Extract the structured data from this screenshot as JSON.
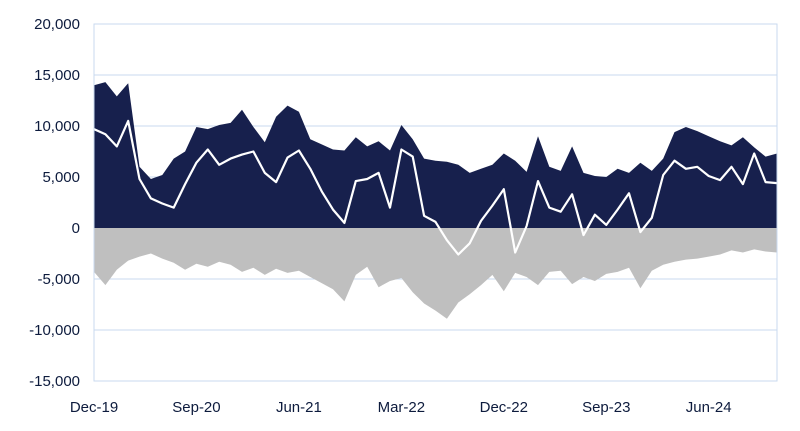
{
  "chart_data": {
    "type": "area",
    "title": "",
    "xlabel": "",
    "ylabel": "",
    "ylim": [
      -15000,
      20000
    ],
    "y_ticks": [
      -15000,
      -10000,
      -5000,
      0,
      5000,
      10000,
      15000,
      20000
    ],
    "y_tick_labels": [
      "-15,000",
      "-10,000",
      "-5,000",
      "0",
      "5,000",
      "10,000",
      "15,000",
      "20,000"
    ],
    "x_ticks": [
      "2019-12",
      "2020-09",
      "2021-06",
      "2022-03",
      "2022-12",
      "2023-09",
      "2024-06"
    ],
    "x_tick_labels": [
      "Dec-19",
      "Sep-20",
      "Jun-21",
      "Mar-22",
      "Dec-22",
      "Sep-23",
      "Jun-24"
    ],
    "x_range": [
      "2019-12",
      "2024-12"
    ],
    "grid": true,
    "legend": "none",
    "colors": {
      "long": "#17204d",
      "short": "#bfbfbf",
      "net": "#ffffff",
      "grid": "#c9daef",
      "text": "#0d1b3d"
    },
    "series": [
      {
        "role": "long",
        "style": "area",
        "points": [
          [
            "2019-12",
            14000
          ],
          [
            "2020-01",
            14300
          ],
          [
            "2020-02",
            12900
          ],
          [
            "2020-03",
            14200
          ],
          [
            "2020-04",
            6000
          ],
          [
            "2020-05",
            4800
          ],
          [
            "2020-06",
            5200
          ],
          [
            "2020-07",
            6800
          ],
          [
            "2020-08",
            7500
          ],
          [
            "2020-09",
            9900
          ],
          [
            "2020-10",
            9700
          ],
          [
            "2020-11",
            10100
          ],
          [
            "2020-12",
            10300
          ],
          [
            "2021-01",
            11600
          ],
          [
            "2021-02",
            9900
          ],
          [
            "2021-03",
            8400
          ],
          [
            "2021-04",
            10900
          ],
          [
            "2021-05",
            12000
          ],
          [
            "2021-06",
            11400
          ],
          [
            "2021-07",
            8700
          ],
          [
            "2021-08",
            8200
          ],
          [
            "2021-09",
            7700
          ],
          [
            "2021-10",
            7600
          ],
          [
            "2021-11",
            8900
          ],
          [
            "2021-12",
            8000
          ],
          [
            "2022-01",
            8500
          ],
          [
            "2022-02",
            7600
          ],
          [
            "2022-03",
            10100
          ],
          [
            "2022-04",
            8700
          ],
          [
            "2022-05",
            6800
          ],
          [
            "2022-06",
            6600
          ],
          [
            "2022-07",
            6500
          ],
          [
            "2022-08",
            6200
          ],
          [
            "2022-09",
            5400
          ],
          [
            "2022-10",
            5800
          ],
          [
            "2022-11",
            6200
          ],
          [
            "2022-12",
            7300
          ],
          [
            "2023-01",
            6600
          ],
          [
            "2023-02",
            5500
          ],
          [
            "2023-03",
            9000
          ],
          [
            "2023-04",
            6000
          ],
          [
            "2023-05",
            5600
          ],
          [
            "2023-06",
            8000
          ],
          [
            "2023-07",
            5400
          ],
          [
            "2023-08",
            5100
          ],
          [
            "2023-09",
            5000
          ],
          [
            "2023-10",
            5800
          ],
          [
            "2023-11",
            5400
          ],
          [
            "2023-12",
            6400
          ],
          [
            "2024-01",
            5600
          ],
          [
            "2024-02",
            6800
          ],
          [
            "2024-03",
            9400
          ],
          [
            "2024-04",
            9900
          ],
          [
            "2024-05",
            9500
          ],
          [
            "2024-06",
            9000
          ],
          [
            "2024-07",
            8500
          ],
          [
            "2024-08",
            8100
          ],
          [
            "2024-09",
            8900
          ],
          [
            "2024-10",
            7900
          ],
          [
            "2024-11",
            7000
          ],
          [
            "2024-12",
            7300
          ]
        ]
      },
      {
        "role": "short",
        "style": "area",
        "points": [
          [
            "2019-12",
            -4300
          ],
          [
            "2020-01",
            -5600
          ],
          [
            "2020-02",
            -4100
          ],
          [
            "2020-03",
            -3200
          ],
          [
            "2020-04",
            -2800
          ],
          [
            "2020-05",
            -2500
          ],
          [
            "2020-06",
            -3000
          ],
          [
            "2020-07",
            -3400
          ],
          [
            "2020-08",
            -4100
          ],
          [
            "2020-09",
            -3500
          ],
          [
            "2020-10",
            -3800
          ],
          [
            "2020-11",
            -3300
          ],
          [
            "2020-12",
            -3600
          ],
          [
            "2021-01",
            -4300
          ],
          [
            "2021-02",
            -3900
          ],
          [
            "2021-03",
            -4600
          ],
          [
            "2021-04",
            -4000
          ],
          [
            "2021-05",
            -4400
          ],
          [
            "2021-06",
            -4200
          ],
          [
            "2021-07",
            -4800
          ],
          [
            "2021-08",
            -5400
          ],
          [
            "2021-09",
            -6000
          ],
          [
            "2021-10",
            -7200
          ],
          [
            "2021-11",
            -4600
          ],
          [
            "2021-12",
            -3800
          ],
          [
            "2022-01",
            -5800
          ],
          [
            "2022-02",
            -5200
          ],
          [
            "2022-03",
            -4900
          ],
          [
            "2022-04",
            -6300
          ],
          [
            "2022-05",
            -7400
          ],
          [
            "2022-06",
            -8100
          ],
          [
            "2022-07",
            -8900
          ],
          [
            "2022-08",
            -7300
          ],
          [
            "2022-09",
            -6500
          ],
          [
            "2022-10",
            -5600
          ],
          [
            "2022-11",
            -4600
          ],
          [
            "2022-12",
            -6200
          ],
          [
            "2023-01",
            -4400
          ],
          [
            "2023-02",
            -4800
          ],
          [
            "2023-03",
            -5600
          ],
          [
            "2023-04",
            -4300
          ],
          [
            "2023-05",
            -4200
          ],
          [
            "2023-06",
            -5500
          ],
          [
            "2023-07",
            -4800
          ],
          [
            "2023-08",
            -5200
          ],
          [
            "2023-09",
            -4500
          ],
          [
            "2023-10",
            -4300
          ],
          [
            "2023-11",
            -3900
          ],
          [
            "2023-12",
            -5900
          ],
          [
            "2024-01",
            -4200
          ],
          [
            "2024-02",
            -3600
          ],
          [
            "2024-03",
            -3300
          ],
          [
            "2024-04",
            -3100
          ],
          [
            "2024-05",
            -3000
          ],
          [
            "2024-06",
            -2800
          ],
          [
            "2024-07",
            -2600
          ],
          [
            "2024-08",
            -2200
          ],
          [
            "2024-09",
            -2400
          ],
          [
            "2024-10",
            -2100
          ],
          [
            "2024-11",
            -2300
          ],
          [
            "2024-12",
            -2400
          ]
        ]
      },
      {
        "role": "net",
        "style": "line",
        "points": [
          [
            "2019-12",
            9700
          ],
          [
            "2020-01",
            9200
          ],
          [
            "2020-02",
            8000
          ],
          [
            "2020-03",
            10500
          ],
          [
            "2020-04",
            4800
          ],
          [
            "2020-05",
            2900
          ],
          [
            "2020-06",
            2400
          ],
          [
            "2020-07",
            2000
          ],
          [
            "2020-08",
            4300
          ],
          [
            "2020-09",
            6400
          ],
          [
            "2020-10",
            7700
          ],
          [
            "2020-11",
            6200
          ],
          [
            "2020-12",
            6800
          ],
          [
            "2021-01",
            7200
          ],
          [
            "2021-02",
            7500
          ],
          [
            "2021-03",
            5400
          ],
          [
            "2021-04",
            4500
          ],
          [
            "2021-05",
            6900
          ],
          [
            "2021-06",
            7600
          ],
          [
            "2021-07",
            5800
          ],
          [
            "2021-08",
            3600
          ],
          [
            "2021-09",
            1800
          ],
          [
            "2021-10",
            500
          ],
          [
            "2021-11",
            4600
          ],
          [
            "2021-12",
            4800
          ],
          [
            "2022-01",
            5400
          ],
          [
            "2022-02",
            2000
          ],
          [
            "2022-03",
            7700
          ],
          [
            "2022-04",
            7000
          ],
          [
            "2022-05",
            1200
          ],
          [
            "2022-06",
            600
          ],
          [
            "2022-07",
            -1200
          ],
          [
            "2022-08",
            -2600
          ],
          [
            "2022-09",
            -1500
          ],
          [
            "2022-10",
            700
          ],
          [
            "2022-11",
            2200
          ],
          [
            "2022-12",
            3800
          ],
          [
            "2023-01",
            -2400
          ],
          [
            "2023-02",
            200
          ],
          [
            "2023-03",
            4600
          ],
          [
            "2023-04",
            2000
          ],
          [
            "2023-05",
            1600
          ],
          [
            "2023-06",
            3300
          ],
          [
            "2023-07",
            -700
          ],
          [
            "2023-08",
            1300
          ],
          [
            "2023-09",
            300
          ],
          [
            "2023-10",
            1800
          ],
          [
            "2023-11",
            3400
          ],
          [
            "2023-12",
            -400
          ],
          [
            "2024-01",
            1000
          ],
          [
            "2024-02",
            5200
          ],
          [
            "2024-03",
            6600
          ],
          [
            "2024-04",
            5800
          ],
          [
            "2024-05",
            6000
          ],
          [
            "2024-06",
            5100
          ],
          [
            "2024-07",
            4700
          ],
          [
            "2024-08",
            6000
          ],
          [
            "2024-09",
            4300
          ],
          [
            "2024-10",
            7300
          ],
          [
            "2024-11",
            4500
          ],
          [
            "2024-12",
            4400
          ]
        ]
      }
    ]
  }
}
